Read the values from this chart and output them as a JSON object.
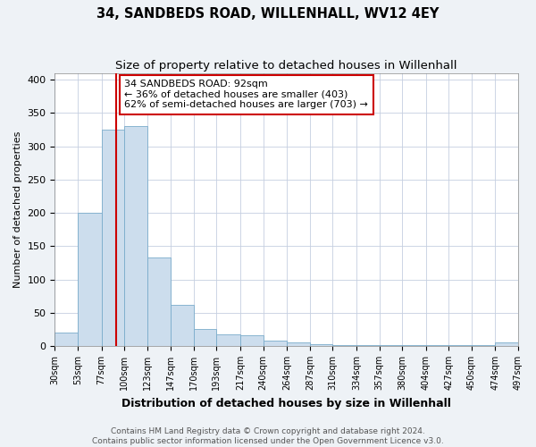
{
  "title": "34, SANDBEDS ROAD, WILLENHALL, WV12 4EY",
  "subtitle": "Size of property relative to detached houses in Willenhall",
  "xlabel": "Distribution of detached houses by size in Willenhall",
  "ylabel": "Number of detached properties",
  "bar_edges": [
    30,
    53,
    77,
    100,
    123,
    147,
    170,
    193,
    217,
    240,
    264,
    287,
    310,
    334,
    357,
    380,
    404,
    427,
    450,
    474,
    497
  ],
  "bar_heights": [
    20,
    200,
    325,
    330,
    133,
    62,
    25,
    17,
    16,
    8,
    5,
    3,
    2,
    2,
    1,
    1,
    1,
    1,
    1,
    5
  ],
  "bar_color": "#ccdded",
  "bar_edgecolor": "#7aaccb",
  "property_sqm": 92,
  "vline_color": "#cc0000",
  "annotation_text": "34 SANDBEDS ROAD: 92sqm\n← 36% of detached houses are smaller (403)\n62% of semi-detached houses are larger (703) →",
  "annotation_box_edgecolor": "#cc0000",
  "annotation_box_facecolor": "#ffffff",
  "tick_labels": [
    "30sqm",
    "53sqm",
    "77sqm",
    "100sqm",
    "123sqm",
    "147sqm",
    "170sqm",
    "193sqm",
    "217sqm",
    "240sqm",
    "264sqm",
    "287sqm",
    "310sqm",
    "334sqm",
    "357sqm",
    "380sqm",
    "404sqm",
    "427sqm",
    "450sqm",
    "474sqm",
    "497sqm"
  ],
  "ylim": [
    0,
    410
  ],
  "yticks": [
    0,
    50,
    100,
    150,
    200,
    250,
    300,
    350,
    400
  ],
  "footer_text": "Contains HM Land Registry data © Crown copyright and database right 2024.\nContains public sector information licensed under the Open Government Licence v3.0.",
  "bg_color": "#eef2f6",
  "plot_bg_color": "#ffffff",
  "title_fontsize": 10.5,
  "subtitle_fontsize": 9.5,
  "ylabel_fontsize": 8,
  "xlabel_fontsize": 9,
  "tick_fontsize": 7,
  "footer_fontsize": 6.5,
  "annotation_fontsize": 8
}
